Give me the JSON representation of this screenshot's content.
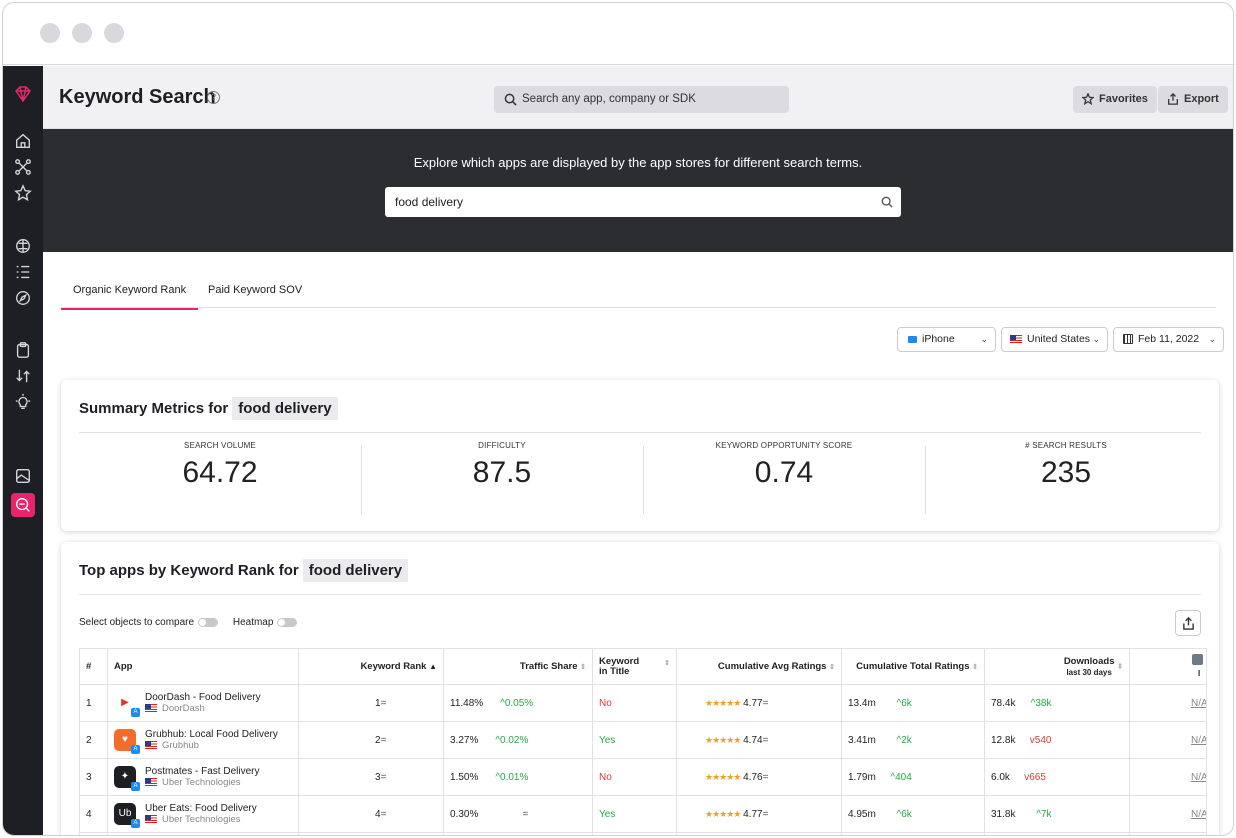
{
  "header": {
    "title": "Keyword Search",
    "help_icon": "?",
    "search_placeholder": "Search any app, company or SDK",
    "favorites_label": "Favorites",
    "export_label": "Export"
  },
  "hero": {
    "text": "Explore which apps are displayed by the app stores for different search terms.",
    "query": "food delivery"
  },
  "tabs": [
    "Organic Keyword Rank",
    "Paid Keyword SOV"
  ],
  "filters": {
    "device": "iPhone",
    "country": "United States",
    "date": "Feb 11, 2022"
  },
  "summary": {
    "title": "Summary Metrics for",
    "keyword": "food delivery",
    "metrics": [
      {
        "label": "SEARCH VOLUME",
        "value": "64.72"
      },
      {
        "label": "DIFFICULTY",
        "value": "87.5"
      },
      {
        "label": "KEYWORD OPPORTUNITY SCORE",
        "value": "0.74"
      },
      {
        "label": "# SEARCH RESULTS",
        "value": "235"
      }
    ]
  },
  "top_apps": {
    "title": "Top apps by Keyword Rank for",
    "keyword": "food delivery",
    "compare_label": "Select objects to compare",
    "heatmap_label": "Heatmap",
    "columns": {
      "num": "#",
      "app": "App",
      "rank": "Keyword Rank",
      "traffic": "Traffic Share",
      "in_title": "Keyword in Title",
      "avg_ratings": "Cumulative Avg Ratings",
      "total_ratings": "Cumulative Total Ratings",
      "downloads": "Downloads",
      "downloads_sub": "last 30 days",
      "extra_sub": "l"
    },
    "rows": [
      {
        "num": "1",
        "name": "DoorDash - Food Delivery",
        "dev": "DoorDash",
        "rank": "1",
        "rank_change": "=",
        "traffic": "11.48%",
        "traffic_change": "^0.05%",
        "in_title": "No",
        "rating": "4.77",
        "rating_change": "=",
        "total": "13.4m",
        "total_change": "^6k",
        "downloads": "78.4k",
        "downloads_change": "^38k",
        "extra": "N/A"
      },
      {
        "num": "2",
        "name": "Grubhub: Local Food Delivery",
        "dev": "Grubhub",
        "rank": "2",
        "rank_change": "=",
        "traffic": "3.27%",
        "traffic_change": "^0.02%",
        "in_title": "Yes",
        "rating": "4.74",
        "rating_change": "=",
        "total": "3.41m",
        "total_change": "^2k",
        "downloads": "12.8k",
        "downloads_change": "v540",
        "extra": "N/A"
      },
      {
        "num": "3",
        "name": "Postmates - Fast Delivery",
        "dev": "Uber Technologies",
        "rank": "3",
        "rank_change": "=",
        "traffic": "1.50%",
        "traffic_change": "^0.01%",
        "in_title": "No",
        "rating": "4.76",
        "rating_change": "=",
        "total": "1.79m",
        "total_change": "^404",
        "downloads": "6.0k",
        "downloads_change": "v665",
        "extra": "N/A"
      },
      {
        "num": "4",
        "name": "Uber Eats: Food Delivery",
        "dev": "Uber Technologies",
        "rank": "4",
        "rank_change": "=",
        "traffic": "0.30%",
        "traffic_change": "=",
        "in_title": "Yes",
        "rating": "4.77",
        "rating_change": "=",
        "total": "4.95m",
        "total_change": "^6k",
        "downloads": "31.8k",
        "downloads_change": "^7k",
        "extra": "N/A"
      }
    ]
  },
  "colors": {
    "accent": "#e8246a",
    "sidebar": "#1d1f24",
    "hero": "#2c2d31",
    "up": "#29a845",
    "down": "#d63b3b"
  }
}
